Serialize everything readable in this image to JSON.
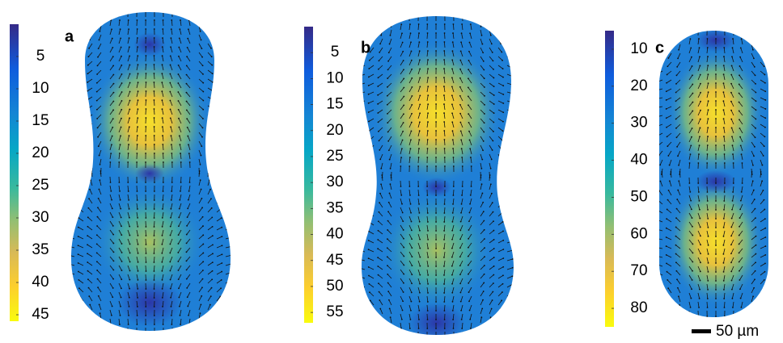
{
  "chart_data": [
    {
      "type": "heatmap",
      "label": "a",
      "clim": [
        0,
        46
      ],
      "cticks": [
        5,
        10,
        15,
        20,
        25,
        30,
        35,
        40,
        45
      ]
    },
    {
      "type": "heatmap",
      "label": "b",
      "clim": [
        0,
        57
      ],
      "cticks": [
        5,
        10,
        15,
        20,
        25,
        30,
        35,
        40,
        45,
        50,
        55
      ]
    },
    {
      "type": "heatmap",
      "label": "c",
      "clim": [
        5,
        85
      ],
      "cticks": [
        10,
        20,
        30,
        40,
        50,
        60,
        70,
        80
      ]
    }
  ],
  "scale_bar": "50 µm"
}
